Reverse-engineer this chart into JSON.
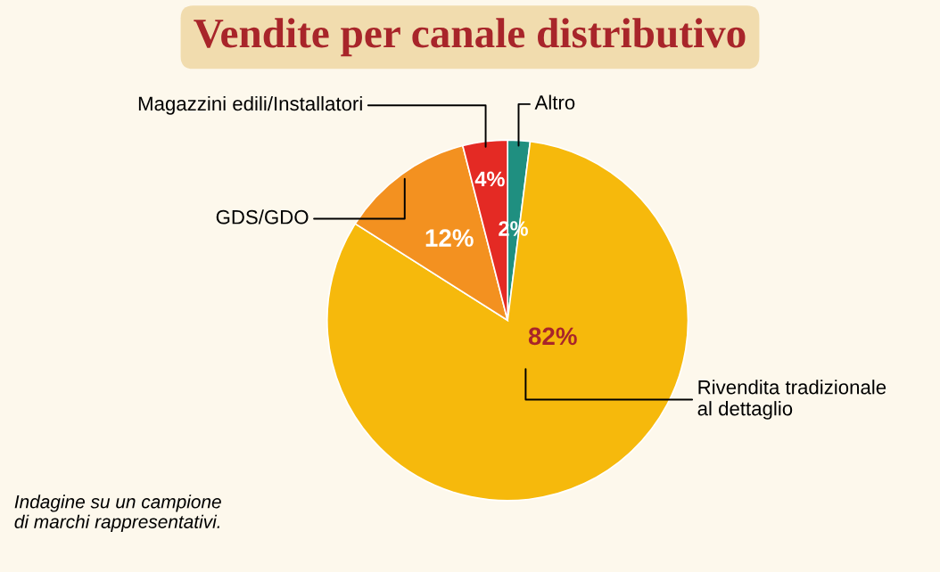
{
  "chart_data": {
    "type": "pie",
    "title": "Vendite per canale distributivo",
    "categories": [
      "Altro",
      "Rivendita tradizionale\nal dettaglio",
      "GDS/GDO",
      "Magazzini edili/Installatori"
    ],
    "values": [
      2,
      82,
      12,
      4
    ],
    "colors": [
      "#1f8f80",
      "#f6b90c",
      "#f39120",
      "#e42a24"
    ],
    "value_labels": [
      "2%",
      "82%",
      "12%",
      "4%"
    ],
    "annotations": [
      "Indagine su un campione\ndi marchi rappresentativi."
    ]
  }
}
